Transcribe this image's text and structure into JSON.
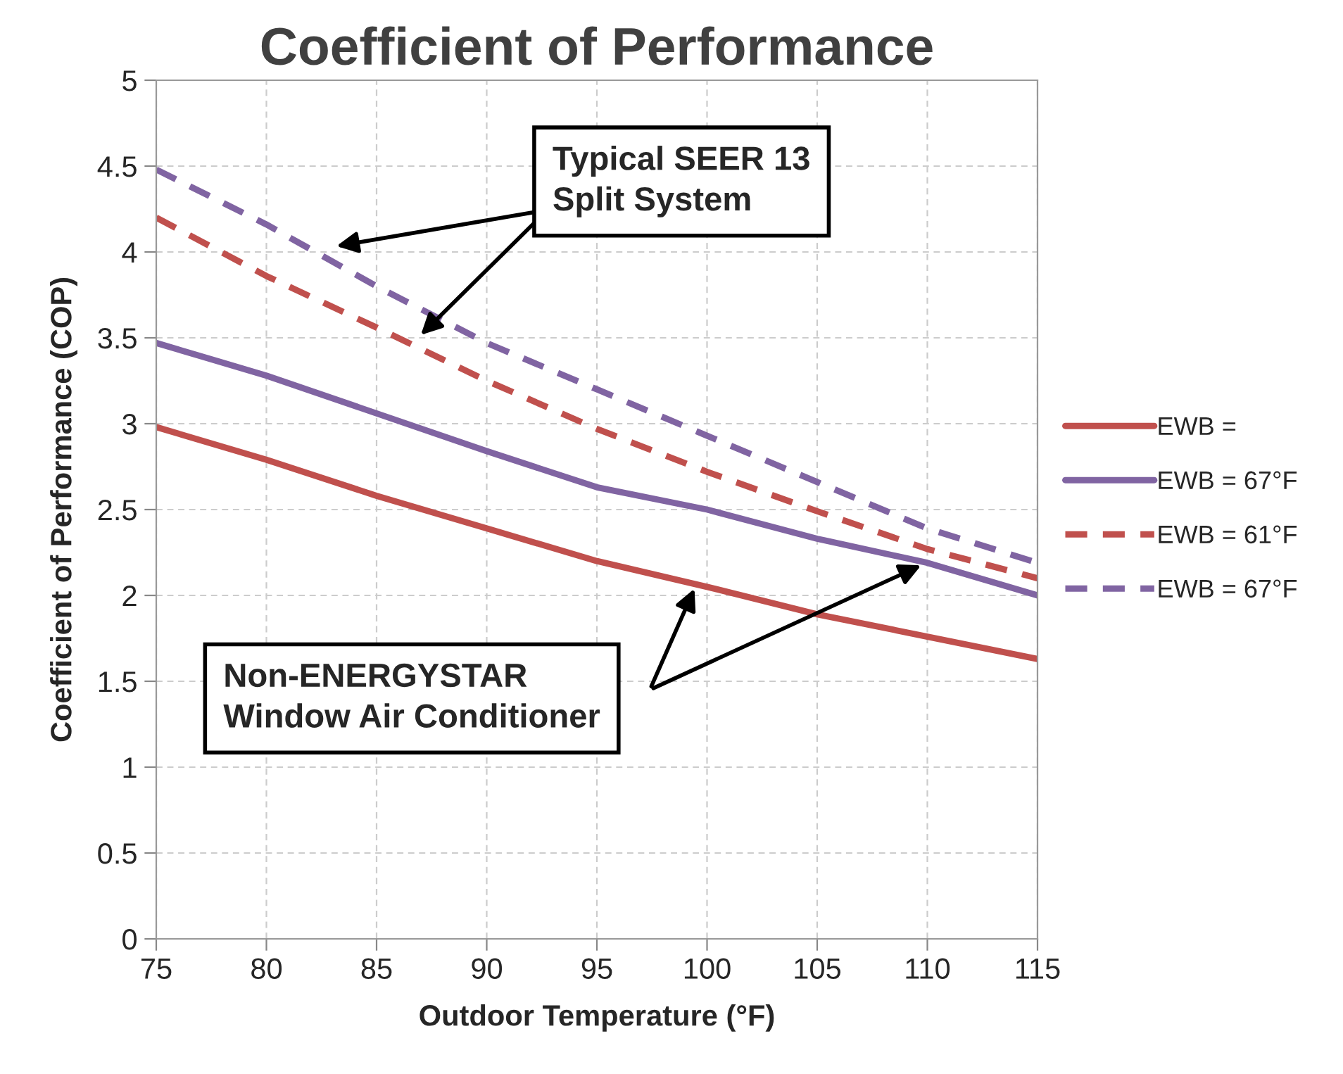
{
  "chart_data": {
    "type": "line",
    "title": "Coefficient of Performance",
    "xlabel": "Outdoor Temperature (°F)",
    "ylabel": "Coefficient of Performance (COP)",
    "x": [
      75,
      80,
      85,
      90,
      95,
      100,
      105,
      110,
      115
    ],
    "series": [
      {
        "name": "EWB =",
        "color": "#c0504d",
        "line_style": "solid",
        "values": [
          2.98,
          2.79,
          2.58,
          2.39,
          2.2,
          2.05,
          1.89,
          1.76,
          1.63
        ]
      },
      {
        "name": "EWB = 67°F",
        "color": "#8064a2",
        "line_style": "solid",
        "values": [
          3.47,
          3.28,
          3.06,
          2.84,
          2.63,
          2.5,
          2.33,
          2.19,
          2.0
        ]
      },
      {
        "name": "EWB = 61°F",
        "color": "#c0504d",
        "line_style": "dashed",
        "values": [
          4.2,
          3.86,
          3.56,
          3.25,
          2.97,
          2.72,
          2.49,
          2.27,
          2.1
        ]
      },
      {
        "name": "EWB = 67°F",
        "color": "#8064a2",
        "line_style": "dashed",
        "values": [
          4.48,
          4.16,
          3.8,
          3.47,
          3.2,
          2.93,
          2.66,
          2.39,
          2.19
        ]
      }
    ],
    "xlim": [
      75,
      115
    ],
    "xticks": [
      75,
      80,
      85,
      90,
      95,
      100,
      105,
      110,
      115
    ],
    "ylim": [
      0,
      5
    ],
    "yticks": [
      0,
      0.5,
      1,
      1.5,
      2,
      2.5,
      3,
      3.5,
      4,
      4.5,
      5
    ],
    "grid": true,
    "legend": "right",
    "marker": "none",
    "annotations": [
      "Typical SEER 13\nSplit System",
      "Non-ENERGYSTAR\nWindow Air Conditioner"
    ]
  }
}
